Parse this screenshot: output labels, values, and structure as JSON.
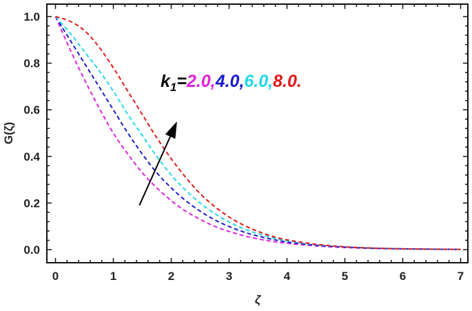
{
  "chart_data": {
    "type": "line",
    "title": "",
    "xlabel": "ζ",
    "ylabel": "G(ζ)",
    "xlim": [
      0,
      7
    ],
    "ylim": [
      0,
      1.05
    ],
    "x_ticks": [
      "0",
      "1",
      "2",
      "3",
      "4",
      "5",
      "6",
      "7"
    ],
    "y_ticks": [
      "0.0",
      "0.2",
      "0.4",
      "0.6",
      "0.8",
      "1.0"
    ],
    "grid": false,
    "line_style": "dashed",
    "x": [
      0,
      0.25,
      0.5,
      0.75,
      1,
      1.25,
      1.5,
      1.75,
      2,
      2.25,
      2.5,
      2.75,
      3,
      3.25,
      3.5,
      3.75,
      4,
      4.5,
      5,
      5.5,
      6,
      6.5,
      7
    ],
    "series": [
      {
        "color": "#e020e0",
        "values": [
          1.0,
          0.86,
          0.73,
          0.61,
          0.5,
          0.41,
          0.33,
          0.265,
          0.21,
          0.165,
          0.13,
          0.1,
          0.078,
          0.06,
          0.046,
          0.035,
          0.027,
          0.016,
          0.009,
          0.005,
          0.003,
          0.0015,
          0.001
        ]
      },
      {
        "color": "#1a1ad0",
        "values": [
          1.0,
          0.9,
          0.8,
          0.7,
          0.6,
          0.5,
          0.41,
          0.33,
          0.265,
          0.21,
          0.165,
          0.128,
          0.099,
          0.076,
          0.058,
          0.044,
          0.033,
          0.019,
          0.011,
          0.006,
          0.0035,
          0.002,
          0.001
        ]
      },
      {
        "color": "#20d8e8",
        "values": [
          1.0,
          0.93,
          0.85,
          0.77,
          0.68,
          0.58,
          0.49,
          0.4,
          0.32,
          0.255,
          0.2,
          0.155,
          0.118,
          0.09,
          0.068,
          0.051,
          0.038,
          0.021,
          0.012,
          0.0065,
          0.0035,
          0.002,
          0.001
        ]
      },
      {
        "color": "#e01818",
        "values": [
          1.0,
          0.98,
          0.94,
          0.87,
          0.78,
          0.68,
          0.58,
          0.48,
          0.39,
          0.31,
          0.24,
          0.185,
          0.14,
          0.105,
          0.078,
          0.057,
          0.042,
          0.023,
          0.012,
          0.0065,
          0.0035,
          0.002,
          0.001
        ]
      }
    ],
    "annotation": {
      "prefix": "k",
      "subscript": "1",
      "equals": "=",
      "parts": [
        {
          "text": "2.0,",
          "color": "#e020e0"
        },
        {
          "text": "4.0,",
          "color": "#1a1ad0"
        },
        {
          "text": "6.0,",
          "color": "#20d8e8"
        },
        {
          "text": "8.0.",
          "color": "#e01818"
        }
      ],
      "arrow_from": [
        1.45,
        0.19
      ],
      "arrow_to": [
        2.1,
        0.55
      ]
    }
  }
}
